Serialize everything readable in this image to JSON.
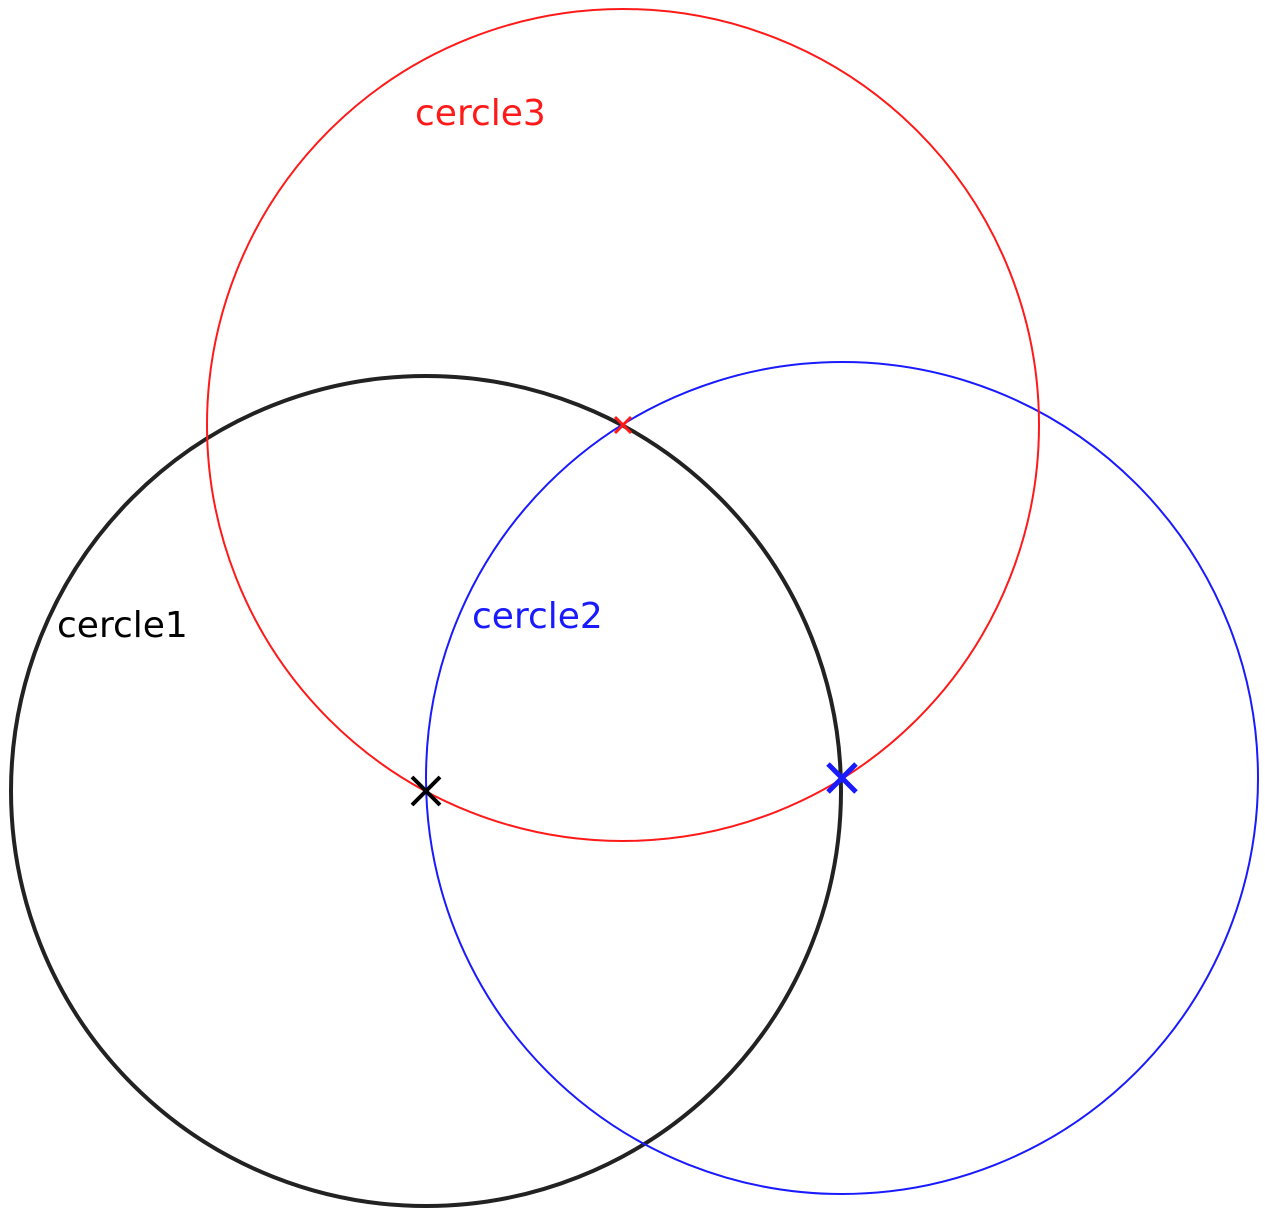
{
  "circles": [
    {
      "label": "cercle1"
    },
    {
      "label": "cercle2"
    },
    {
      "label": "cercle3"
    }
  ]
}
